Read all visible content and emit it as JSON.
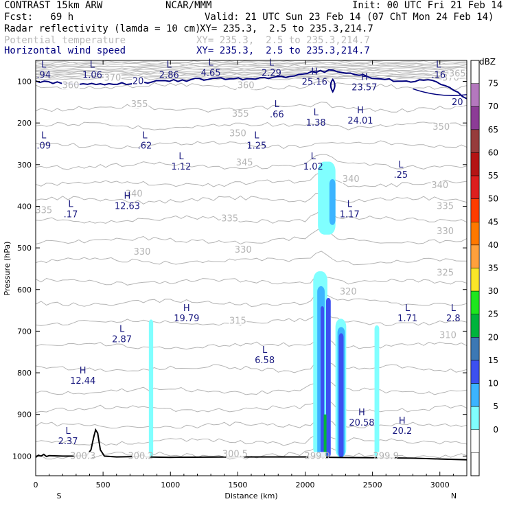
{
  "header": {
    "l1": "CONTRAST 15km ARW",
    "org": "NCAR/MMM",
    "init": "Init: 00 UTC Fri 21 Feb 14",
    "fcst": "Fcst:   69 h",
    "valid": "Valid: 21 UTC Sun 23 Feb 14 (07 ChT Mon 24 Feb 14)",
    "f1": "Radar reflectivity (lamda = 10 cm)",
    "f1xy": "XY= 235.3,  2.5 to 235.3,214.7",
    "f2": "Potential temperature",
    "f2xy": "XY= 235.3,  2.5 to 235.3,214.7",
    "f3": "Horizontal wind speed",
    "f3xy": "XY= 235.3,  2.5 to 235.3,214.7"
  },
  "colors": {
    "navy": "#00007d",
    "gray_contour": "#b4b4b4",
    "terrain": "#000000"
  },
  "chart_data": {
    "type": "cross-section",
    "xlabel": "Distance (km)",
    "ylabel": "Pressure (hPa)",
    "xlim": [
      0,
      3200
    ],
    "ylim": [
      1050,
      50
    ],
    "x_ticks": [
      "0",
      "500",
      "1000",
      "1500",
      "2000",
      "2500",
      "3000"
    ],
    "x_tick_values": [
      0,
      500,
      1000,
      1500,
      2000,
      2500,
      3000
    ],
    "y_ticks": [
      "100",
      "200",
      "300",
      "400",
      "500",
      "600",
      "700",
      "800",
      "900",
      "1000"
    ],
    "y_tick_values": [
      100,
      200,
      300,
      400,
      500,
      600,
      700,
      800,
      900,
      1000
    ],
    "end_labels": {
      "left": "S",
      "right": "N"
    },
    "colorbar": {
      "units": "dBZ",
      "levels": [
        "0",
        "5",
        "10",
        "15",
        "20",
        "25",
        "30",
        "35",
        "40",
        "45",
        "50",
        "55",
        "60",
        "65",
        "70",
        "75"
      ],
      "colors": [
        "#ffffff",
        "#80ffff",
        "#3cb4ff",
        "#3c50f0",
        "#3c78b4",
        "#00b43c",
        "#1ee61e",
        "#fae628",
        "#ffa03c",
        "#ff7800",
        "#ff3c00",
        "#dc1e1e",
        "#b41414",
        "#963c3c",
        "#8c3c96",
        "#b478be"
      ]
    },
    "theta_labels": [
      {
        "text": "360",
        "x": 260,
        "p": 115
      },
      {
        "text": "360",
        "x": 1560,
        "p": 115
      },
      {
        "text": "355",
        "x": 770,
        "p": 160
      },
      {
        "text": "355",
        "x": 1520,
        "p": 183
      },
      {
        "text": "350",
        "x": 1500,
        "p": 230
      },
      {
        "text": "350",
        "x": 3010,
        "p": 215
      },
      {
        "text": "345",
        "x": 1550,
        "p": 300
      },
      {
        "text": "340",
        "x": 730,
        "p": 375
      },
      {
        "text": "340",
        "x": 2340,
        "p": 340
      },
      {
        "text": "340",
        "x": 3000,
        "p": 355
      },
      {
        "text": "335",
        "x": 60,
        "p": 415
      },
      {
        "text": "335",
        "x": 1440,
        "p": 435
      },
      {
        "text": "335",
        "x": 3040,
        "p": 405
      },
      {
        "text": "330",
        "x": 790,
        "p": 515
      },
      {
        "text": "330",
        "x": 1540,
        "p": 510
      },
      {
        "text": "330",
        "x": 3040,
        "p": 465
      },
      {
        "text": "325",
        "x": 3040,
        "p": 565
      },
      {
        "text": "320",
        "x": 2320,
        "p": 610
      },
      {
        "text": "315",
        "x": 1500,
        "p": 680
      },
      {
        "text": "310",
        "x": 3060,
        "p": 715
      },
      {
        "text": "300.3",
        "x": 350,
        "p": 1005
      },
      {
        "text": "300.2",
        "x": 780,
        "p": 1005
      },
      {
        "text": "300.5",
        "x": 1480,
        "p": 1000
      },
      {
        "text": "299.9",
        "x": 2090,
        "p": 1005
      },
      {
        "text": "299.9",
        "x": 2600,
        "p": 1005
      },
      {
        "text": "370",
        "x": 570,
        "p": 97
      },
      {
        "text": "370",
        "x": 3080,
        "p": 97
      },
      {
        "text": "365",
        "x": 3130,
        "p": 87
      }
    ],
    "wind_labels": [
      {
        "text": "20",
        "x": 760,
        "p": 105
      },
      {
        "text": "20",
        "x": 3130,
        "p": 155
      }
    ],
    "extrema": [
      {
        "type": "L",
        "value": ".94",
        "x": 60,
        "p": 80
      },
      {
        "type": "L",
        "value": "1.06",
        "x": 420,
        "p": 80
      },
      {
        "type": "L",
        "value": "2.86",
        "x": 990,
        "p": 80
      },
      {
        "type": "L",
        "value": "4.65",
        "x": 1300,
        "p": 75
      },
      {
        "type": "L",
        "value": "2.29",
        "x": 1750,
        "p": 75
      },
      {
        "type": "H",
        "value": "25.16",
        "x": 2070,
        "p": 97
      },
      {
        "type": "H",
        "value": "23.57",
        "x": 2440,
        "p": 110
      },
      {
        "type": "L",
        "value": ".16",
        "x": 2990,
        "p": 80
      },
      {
        "type": "L",
        "value": ".66",
        "x": 1790,
        "p": 175
      },
      {
        "type": "L",
        "value": "1.38",
        "x": 2080,
        "p": 195
      },
      {
        "type": "H",
        "value": "24.01",
        "x": 2410,
        "p": 190
      },
      {
        "type": "L",
        "value": ".09",
        "x": 60,
        "p": 250
      },
      {
        "type": "L",
        "value": ".62",
        "x": 810,
        "p": 250
      },
      {
        "type": "L",
        "value": "1.25",
        "x": 1640,
        "p": 250
      },
      {
        "type": "L",
        "value": "1.12",
        "x": 1080,
        "p": 300
      },
      {
        "type": "L",
        "value": "1.02",
        "x": 2060,
        "p": 300
      },
      {
        "type": "L",
        "value": ".25",
        "x": 2710,
        "p": 320
      },
      {
        "type": "H",
        "value": "12.63",
        "x": 680,
        "p": 395
      },
      {
        "type": "L",
        "value": ".17",
        "x": 260,
        "p": 415
      },
      {
        "type": "L",
        "value": "1.17",
        "x": 2330,
        "p": 415
      },
      {
        "type": "H",
        "value": "19.79",
        "x": 1120,
        "p": 665
      },
      {
        "type": "L",
        "value": "1.71",
        "x": 2760,
        "p": 665
      },
      {
        "type": "L",
        "value": "2.8",
        "x": 3100,
        "p": 665
      },
      {
        "type": "L",
        "value": "2.87",
        "x": 640,
        "p": 715
      },
      {
        "type": "L",
        "value": "6.58",
        "x": 1700,
        "p": 765
      },
      {
        "type": "H",
        "value": "12.44",
        "x": 350,
        "p": 815
      },
      {
        "type": "H",
        "value": "20.58",
        "x": 2420,
        "p": 915
      },
      {
        "type": "H",
        "value": "20.2",
        "x": 2720,
        "p": 935
      },
      {
        "type": "L",
        "value": "2.37",
        "x": 240,
        "p": 960
      }
    ]
  }
}
